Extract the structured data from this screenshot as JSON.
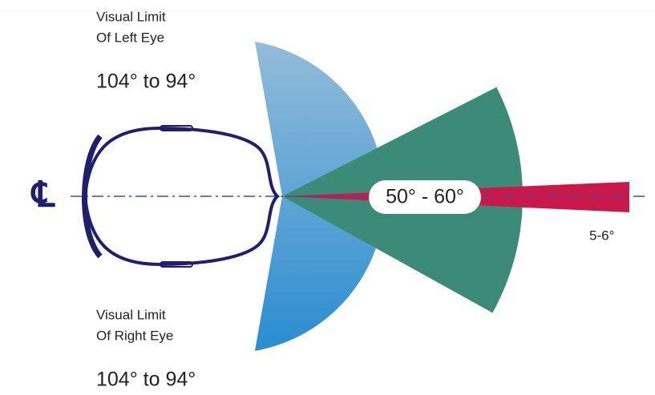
{
  "centerline_symbol": "℄",
  "left_eye": {
    "label_line1": "Visual Limit",
    "label_line2": "Of Left Eye",
    "range": "104° to 94°"
  },
  "right_eye": {
    "label_line1": "Visual Limit",
    "label_line2": "Of Right Eye",
    "range": "104° to 94°"
  },
  "binocular_range": "50° - 60°",
  "focus_range": "5-6°"
}
